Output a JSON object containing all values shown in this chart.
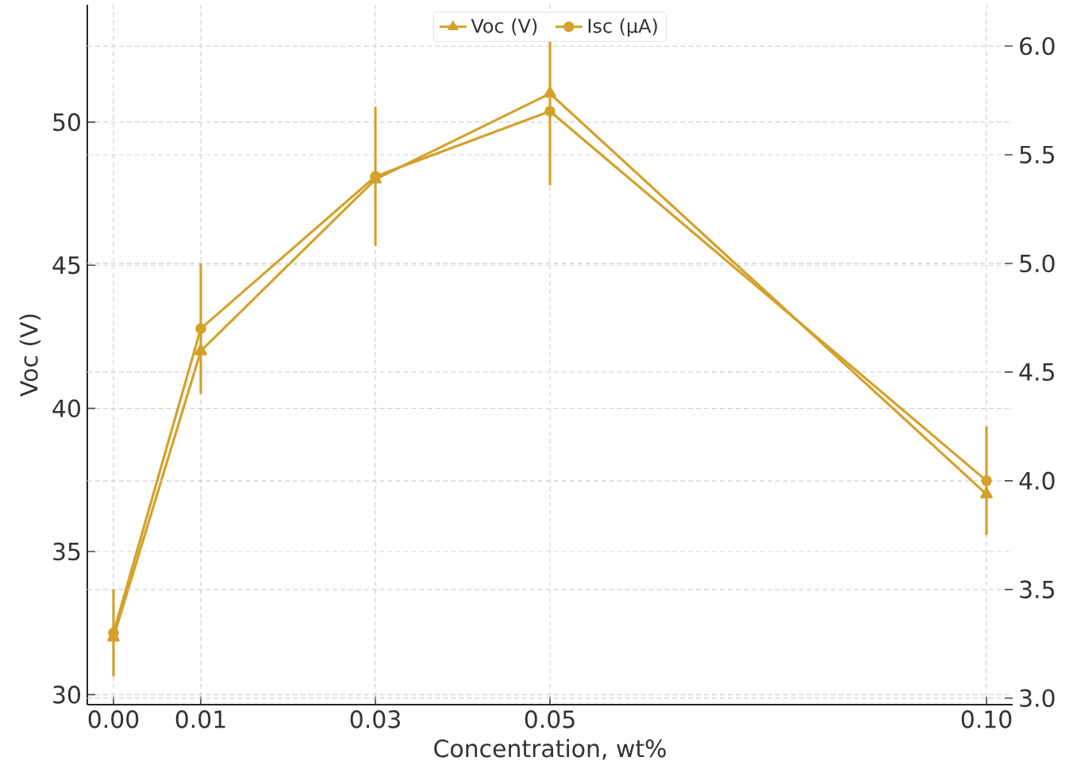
{
  "chart_data": {
    "type": "line",
    "xlabel": "Concentration, wt%",
    "ylabel": "Voc (V)",
    "x": [
      0,
      0.01,
      0.03,
      0.05,
      0.1
    ],
    "xlim": [
      -0.003,
      0.103
    ],
    "xticks": [
      {
        "value": 0,
        "label": "0.00"
      },
      {
        "value": 0.01,
        "label": "0.01"
      },
      {
        "value": 0.03,
        "label": "0.03"
      },
      {
        "value": 0.05,
        "label": "0.05"
      },
      {
        "value": 0.1,
        "label": "0.10"
      }
    ],
    "ylim": [
      29.65,
      54.1
    ],
    "yticks": [
      30,
      35,
      40,
      45,
      50
    ],
    "y2lim": [
      2.97,
      6.19
    ],
    "y2ticks": [
      {
        "value": 3,
        "label": "3.0"
      },
      {
        "value": 3.5,
        "label": "3.5"
      },
      {
        "value": 4,
        "label": "4.0"
      },
      {
        "value": 4.5,
        "label": "4.5"
      },
      {
        "value": 5,
        "label": "5.0"
      },
      {
        "value": 5.5,
        "label": "5.5"
      },
      {
        "value": 6,
        "label": "6.0"
      }
    ],
    "grid": true,
    "legend": "top",
    "line_style": "solid",
    "series": [
      {
        "name": "Voc (V)",
        "color": "#d4a12a",
        "marker": "triangle",
        "values": [
          32.0,
          42.0,
          48.0,
          51.0,
          37.0
        ]
      },
      {
        "name": "Isc (µA)",
        "color": "#d4a12a",
        "marker": "circle",
        "axis": "y2",
        "values": [
          3.3,
          4.7,
          5.4,
          5.7,
          4.0
        ],
        "errors": [
          0.2,
          0.3,
          0.32,
          0.34,
          0.25
        ]
      }
    ]
  }
}
